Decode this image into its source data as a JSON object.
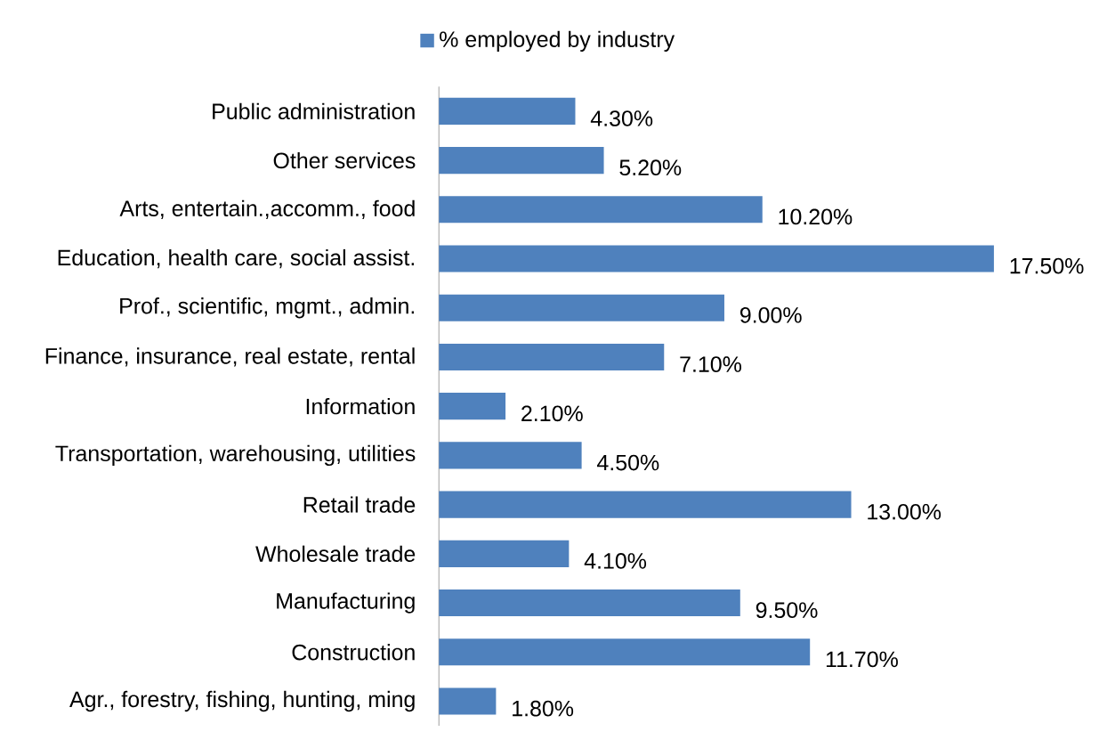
{
  "chart_data": {
    "type": "bar",
    "orientation": "horizontal",
    "categories": [
      "Public administration",
      "Other services",
      "Arts, entertain.,accomm., food",
      "Education, health care, social assist.",
      "Prof., scientific, mgmt., admin.",
      "Finance, insurance, real estate, rental",
      "Information",
      "Transportation, warehousing, utilities",
      "Retail trade",
      "Wholesale trade",
      "Manufacturing",
      "Construction",
      "Agr., forestry, fishing, hunting, ming"
    ],
    "series": [
      {
        "name": "% employed by industry",
        "color": "#4f81bd",
        "values": [
          4.3,
          5.2,
          10.2,
          17.5,
          9.0,
          7.1,
          2.1,
          4.5,
          13.0,
          4.1,
          9.5,
          11.7,
          1.8
        ],
        "value_labels": [
          "4.30%",
          "5.20%",
          "10.20%",
          "17.50%",
          "9.00%",
          "7.10%",
          "2.10%",
          "4.50%",
          "13.00%",
          "4.10%",
          "9.50%",
          "11.70%",
          "1.80%"
        ]
      }
    ],
    "legend": "top"
  }
}
